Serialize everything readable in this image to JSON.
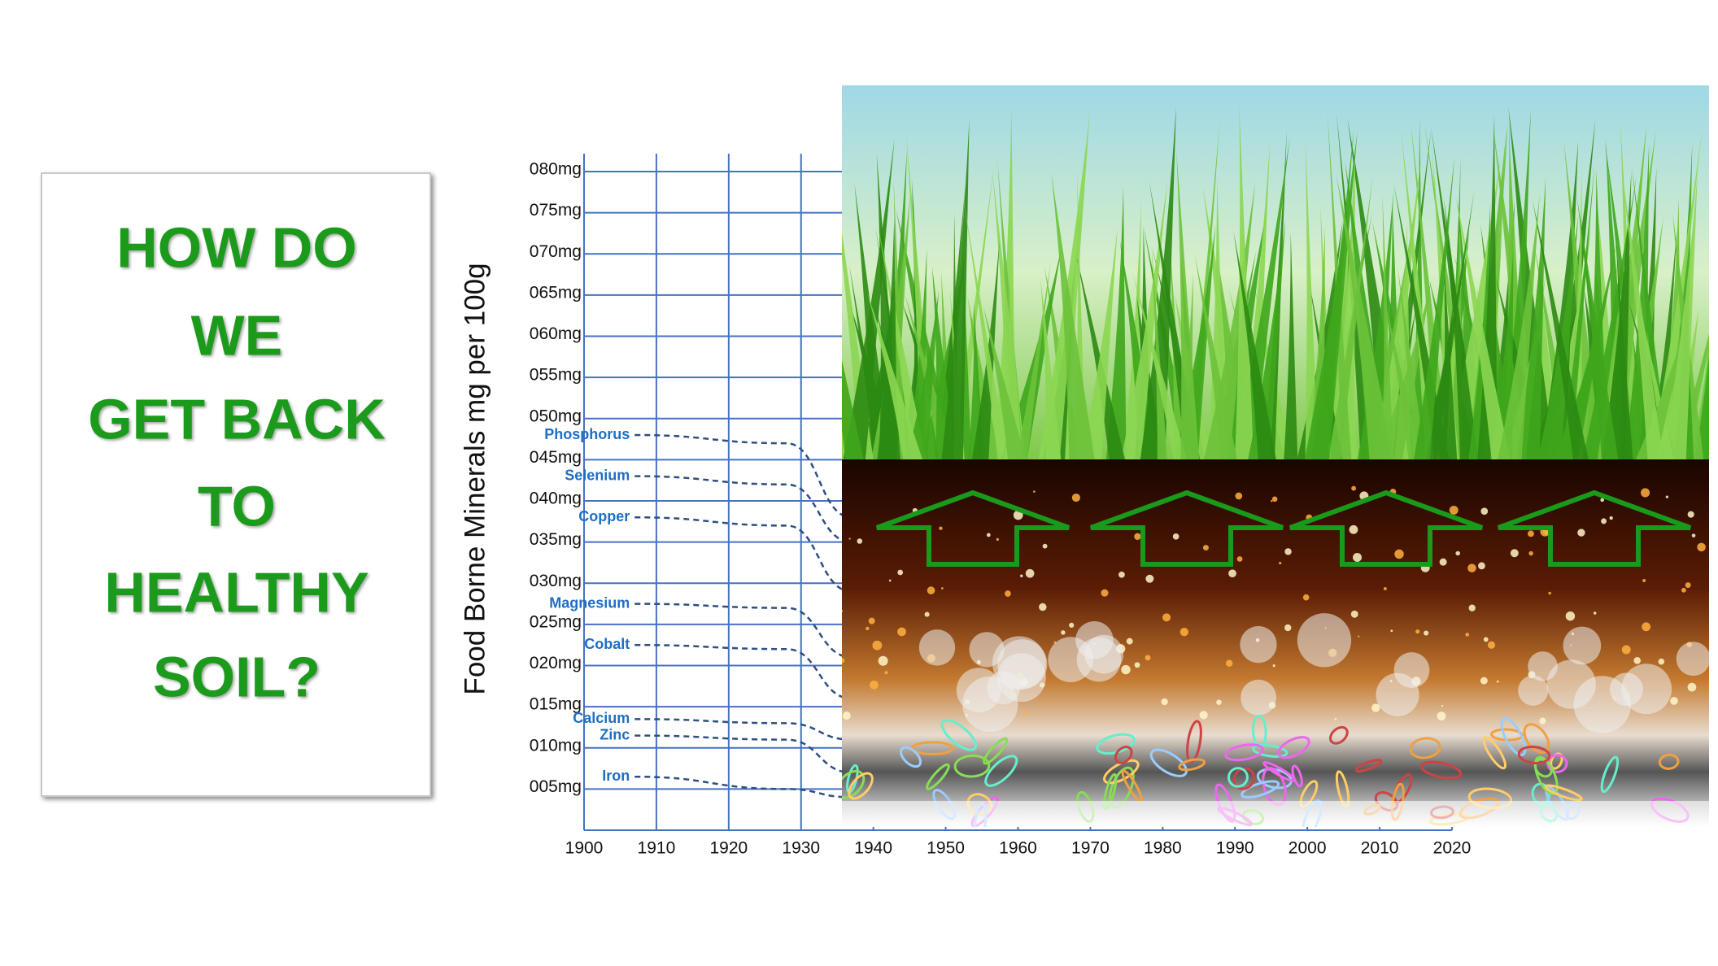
{
  "chart_data": {
    "type": "line",
    "callout": [
      "HOW DO",
      "WE",
      "GET  BACK",
      "TO",
      "HEALTHY",
      "SOIL?"
    ],
    "ylabel": "Food Borne Minerals mg per 100g",
    "xlim": [
      1900,
      2020
    ],
    "ylim": [
      0,
      80
    ],
    "xticks": [
      1900,
      1910,
      1920,
      1930,
      1940,
      1950,
      1960,
      1970,
      1980,
      1990,
      2000,
      2010,
      2020
    ],
    "yticks": [
      {
        "value": 5,
        "label": "005mg"
      },
      {
        "value": 10,
        "label": "010mg"
      },
      {
        "value": 15,
        "label": "015mg"
      },
      {
        "value": 20,
        "label": "020mg"
      },
      {
        "value": 25,
        "label": "025mg"
      },
      {
        "value": 30,
        "label": "030mg"
      },
      {
        "value": 35,
        "label": "035mg"
      },
      {
        "value": 40,
        "label": "040mg"
      },
      {
        "value": 45,
        "label": "045mg"
      },
      {
        "value": 50,
        "label": "050mg"
      },
      {
        "value": 55,
        "label": "055mg"
      },
      {
        "value": 60,
        "label": "060mg"
      },
      {
        "value": 65,
        "label": "065mg"
      },
      {
        "value": 70,
        "label": "070mg"
      },
      {
        "value": 75,
        "label": "075mg"
      },
      {
        "value": 80,
        "label": "080mg"
      }
    ],
    "grid": true,
    "x": [
      1907,
      1928,
      1937
    ],
    "series": [
      {
        "name": "Phosphorus",
        "color": "#2f4f7f",
        "values": [
          48,
          47,
          38
        ]
      },
      {
        "name": "Selenium",
        "color": "#2f4f7f",
        "values": [
          43,
          42,
          35
        ]
      },
      {
        "name": "Copper",
        "color": "#2f4f7f",
        "values": [
          38,
          37,
          29
        ]
      },
      {
        "name": "Magnesium",
        "color": "#2f4f7f",
        "values": [
          27.5,
          27,
          21
        ]
      },
      {
        "name": "Cobalt",
        "color": "#2f4f7f",
        "values": [
          22.5,
          22,
          16
        ]
      },
      {
        "name": "Calcium",
        "color": "#2f4f7f",
        "values": [
          13.5,
          13,
          11
        ]
      },
      {
        "name": "Zinc",
        "color": "#2f4f7f",
        "values": [
          11.5,
          11,
          7
        ]
      },
      {
        "name": "Iron",
        "color": "#2f4f7f",
        "values": [
          6.5,
          5,
          4
        ]
      }
    ]
  }
}
